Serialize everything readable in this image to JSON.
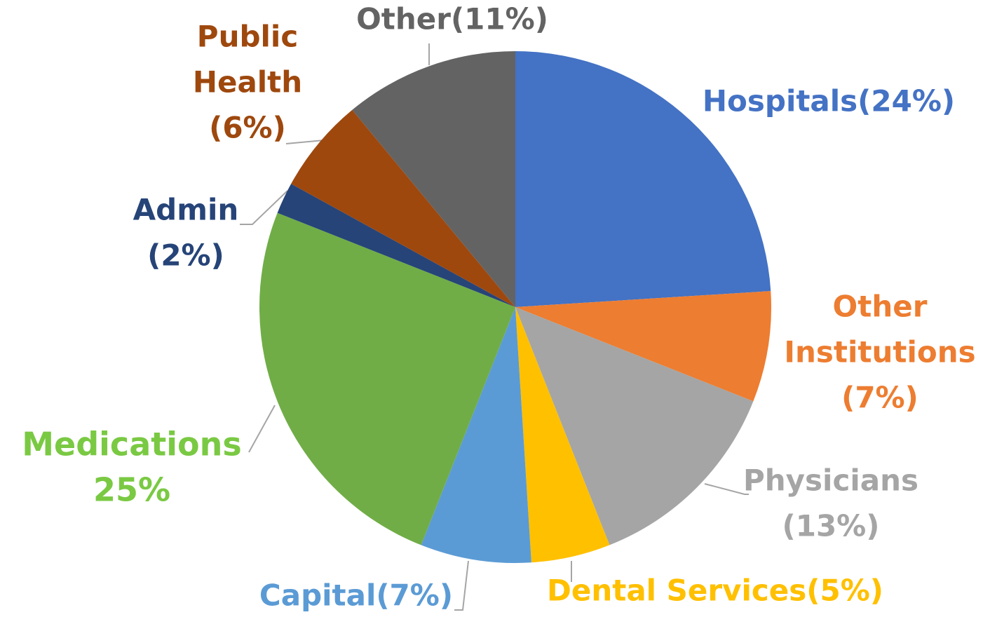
{
  "chart_data": {
    "type": "pie",
    "categories": [
      "Hospitals",
      "Other Institutions",
      "Physicians",
      "Dental Services",
      "Capital",
      "Medications",
      "Admin",
      "Public Health",
      "Other"
    ],
    "values": [
      24,
      7,
      13,
      5,
      7,
      25,
      2,
      6,
      11
    ],
    "value_labels": [
      [
        "Hospitals(24%)"
      ],
      [
        "Other",
        "Institutions",
        "(7%)"
      ],
      [
        "Physicians",
        "(13%)"
      ],
      [
        "Dental Services(5%)"
      ],
      [
        "Capital(7%)"
      ],
      [
        "Medications",
        "25%"
      ],
      [
        "Admin",
        "(2%)"
      ],
      [
        "Public",
        "Health",
        "(6%)"
      ],
      [
        "Other(11%)"
      ]
    ],
    "colors": [
      "#4472c4",
      "#ed7d31",
      "#a5a5a5",
      "#ffc000",
      "#5b9bd5",
      "#70ad47",
      "#264478",
      "#9e480e",
      "#636363"
    ],
    "label_colors": [
      "#4472c4",
      "#ed7d31",
      "#a5a5a5",
      "#ffc000",
      "#5b9bd5",
      "#7ac943",
      "#264478",
      "#9e480e",
      "#636363"
    ]
  }
}
